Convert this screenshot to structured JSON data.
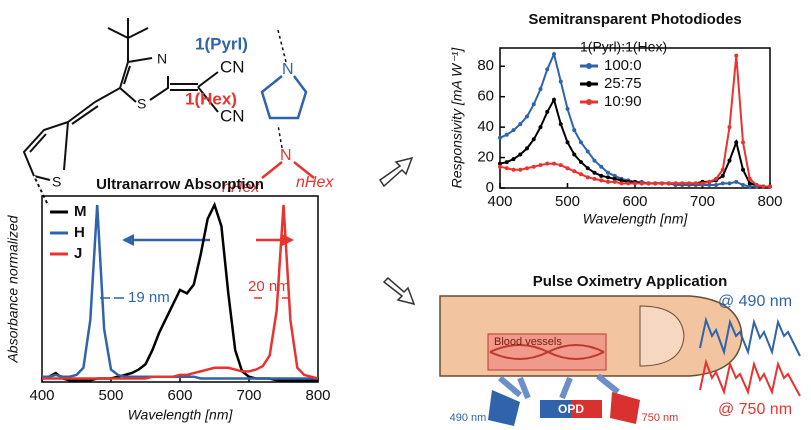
{
  "molecule": {
    "compound_labels": [
      "1(Pyrl)",
      "1(Hex)"
    ],
    "atom_labels": [
      "N",
      "S",
      "CN",
      "CN",
      "S",
      "N",
      "N",
      "nHex",
      "nHex"
    ]
  },
  "oximetry": {
    "title": "Pulse Oximetry Application",
    "labels": [
      "Blood vessels",
      "490 nm",
      "OPD",
      "750 nm"
    ],
    "signal_labels": [
      "@ 490 nm",
      "@ 750 nm"
    ]
  },
  "chart_data": [
    {
      "type": "line",
      "title": "Ultranarrow Absorption",
      "x_label": "Wavelength [nm]",
      "y_label": "Absorbance normalized",
      "x": [
        400,
        410,
        420,
        430,
        440,
        450,
        460,
        470,
        480,
        490,
        500,
        510,
        520,
        530,
        540,
        550,
        560,
        570,
        580,
        590,
        600,
        610,
        620,
        630,
        640,
        650,
        660,
        670,
        680,
        690,
        700,
        710,
        720,
        730,
        740,
        750,
        760,
        770,
        780,
        790,
        800
      ],
      "xlim": [
        400,
        800
      ],
      "xticks": [
        400,
        500,
        600,
        700,
        800
      ],
      "ylim": [
        0,
        1.05
      ],
      "legend": "upper left",
      "markers": false,
      "annotations": [
        "19 nm",
        "20 nm"
      ],
      "series": [
        {
          "name": "M",
          "color": "#000000",
          "values": [
            0.02,
            0.03,
            0.05,
            0.02,
            0.01,
            0.01,
            0.01,
            0.01,
            0.02,
            0.02,
            0.02,
            0.03,
            0.04,
            0.05,
            0.07,
            0.1,
            0.18,
            0.28,
            0.36,
            0.44,
            0.52,
            0.5,
            0.55,
            0.72,
            0.92,
            1.0,
            0.88,
            0.5,
            0.18,
            0.06,
            0.03,
            0.02,
            0.02,
            0.02,
            0.01,
            0.01,
            0.01,
            0.01,
            0.01,
            0.01,
            0.01
          ]
        },
        {
          "name": "H",
          "color": "#2f64ad",
          "values": [
            0.03,
            0.03,
            0.04,
            0.03,
            0.03,
            0.04,
            0.08,
            0.35,
            1.0,
            0.3,
            0.07,
            0.04,
            0.03,
            0.03,
            0.03,
            0.03,
            0.03,
            0.03,
            0.03,
            0.03,
            0.03,
            0.03,
            0.03,
            0.02,
            0.02,
            0.02,
            0.02,
            0.02,
            0.02,
            0.02,
            0.02,
            0.02,
            0.02,
            0.02,
            0.02,
            0.02,
            0.02,
            0.02,
            0.02,
            0.02,
            0.02
          ]
        },
        {
          "name": "J",
          "color": "#e8332f",
          "values": [
            0.02,
            0.02,
            0.02,
            0.02,
            0.02,
            0.02,
            0.02,
            0.02,
            0.02,
            0.02,
            0.02,
            0.02,
            0.02,
            0.02,
            0.02,
            0.02,
            0.03,
            0.03,
            0.03,
            0.03,
            0.04,
            0.04,
            0.05,
            0.06,
            0.07,
            0.08,
            0.08,
            0.08,
            0.07,
            0.06,
            0.06,
            0.07,
            0.09,
            0.15,
            0.4,
            1.0,
            0.35,
            0.08,
            0.04,
            0.03,
            0.02
          ]
        }
      ]
    },
    {
      "type": "line",
      "title": "Semitransparent Photodiodes",
      "x_label": "Wavelength [nm]",
      "y_label": "Responsivity [mA W⁻¹]",
      "x": [
        400,
        410,
        420,
        430,
        440,
        450,
        460,
        470,
        480,
        490,
        500,
        510,
        520,
        530,
        540,
        550,
        560,
        570,
        580,
        590,
        600,
        610,
        620,
        630,
        640,
        650,
        660,
        670,
        680,
        690,
        700,
        710,
        720,
        730,
        740,
        750,
        760,
        770,
        780,
        790,
        800
      ],
      "xlim": [
        400,
        800
      ],
      "xticks": [
        400,
        500,
        600,
        700,
        800
      ],
      "ylim": [
        0,
        92
      ],
      "yticks": [
        0,
        20,
        40,
        60,
        80
      ],
      "legend": "upper center",
      "legend_title": "1(Pyrl):1(Hex)",
      "markers": true,
      "series": [
        {
          "name": "100:0",
          "color": "#2f64ad",
          "values": [
            33,
            35,
            38,
            42,
            47,
            55,
            65,
            78,
            88,
            70,
            52,
            38,
            30,
            24,
            18,
            14,
            10,
            8,
            6,
            5,
            4,
            4,
            3,
            3,
            3,
            3,
            2,
            2,
            2,
            2,
            2,
            2,
            2,
            3,
            3,
            4,
            2,
            1,
            1,
            1,
            1
          ]
        },
        {
          "name": "25:75",
          "color": "#000000",
          "values": [
            16,
            17,
            19,
            22,
            26,
            32,
            40,
            50,
            58,
            42,
            30,
            22,
            17,
            13,
            10,
            8,
            7,
            6,
            5,
            4,
            4,
            3,
            3,
            3,
            3,
            3,
            3,
            3,
            3,
            3,
            4,
            4,
            5,
            8,
            18,
            30,
            12,
            3,
            2,
            1,
            1
          ]
        },
        {
          "name": "10:90",
          "color": "#e8332f",
          "values": [
            14,
            13,
            12,
            12,
            13,
            14,
            15,
            16,
            16,
            15,
            13,
            11,
            9,
            7,
            6,
            5,
            4,
            4,
            3,
            3,
            3,
            3,
            3,
            3,
            3,
            3,
            3,
            3,
            3,
            3,
            3,
            4,
            6,
            12,
            40,
            87,
            30,
            6,
            2,
            1,
            1
          ]
        }
      ]
    }
  ]
}
